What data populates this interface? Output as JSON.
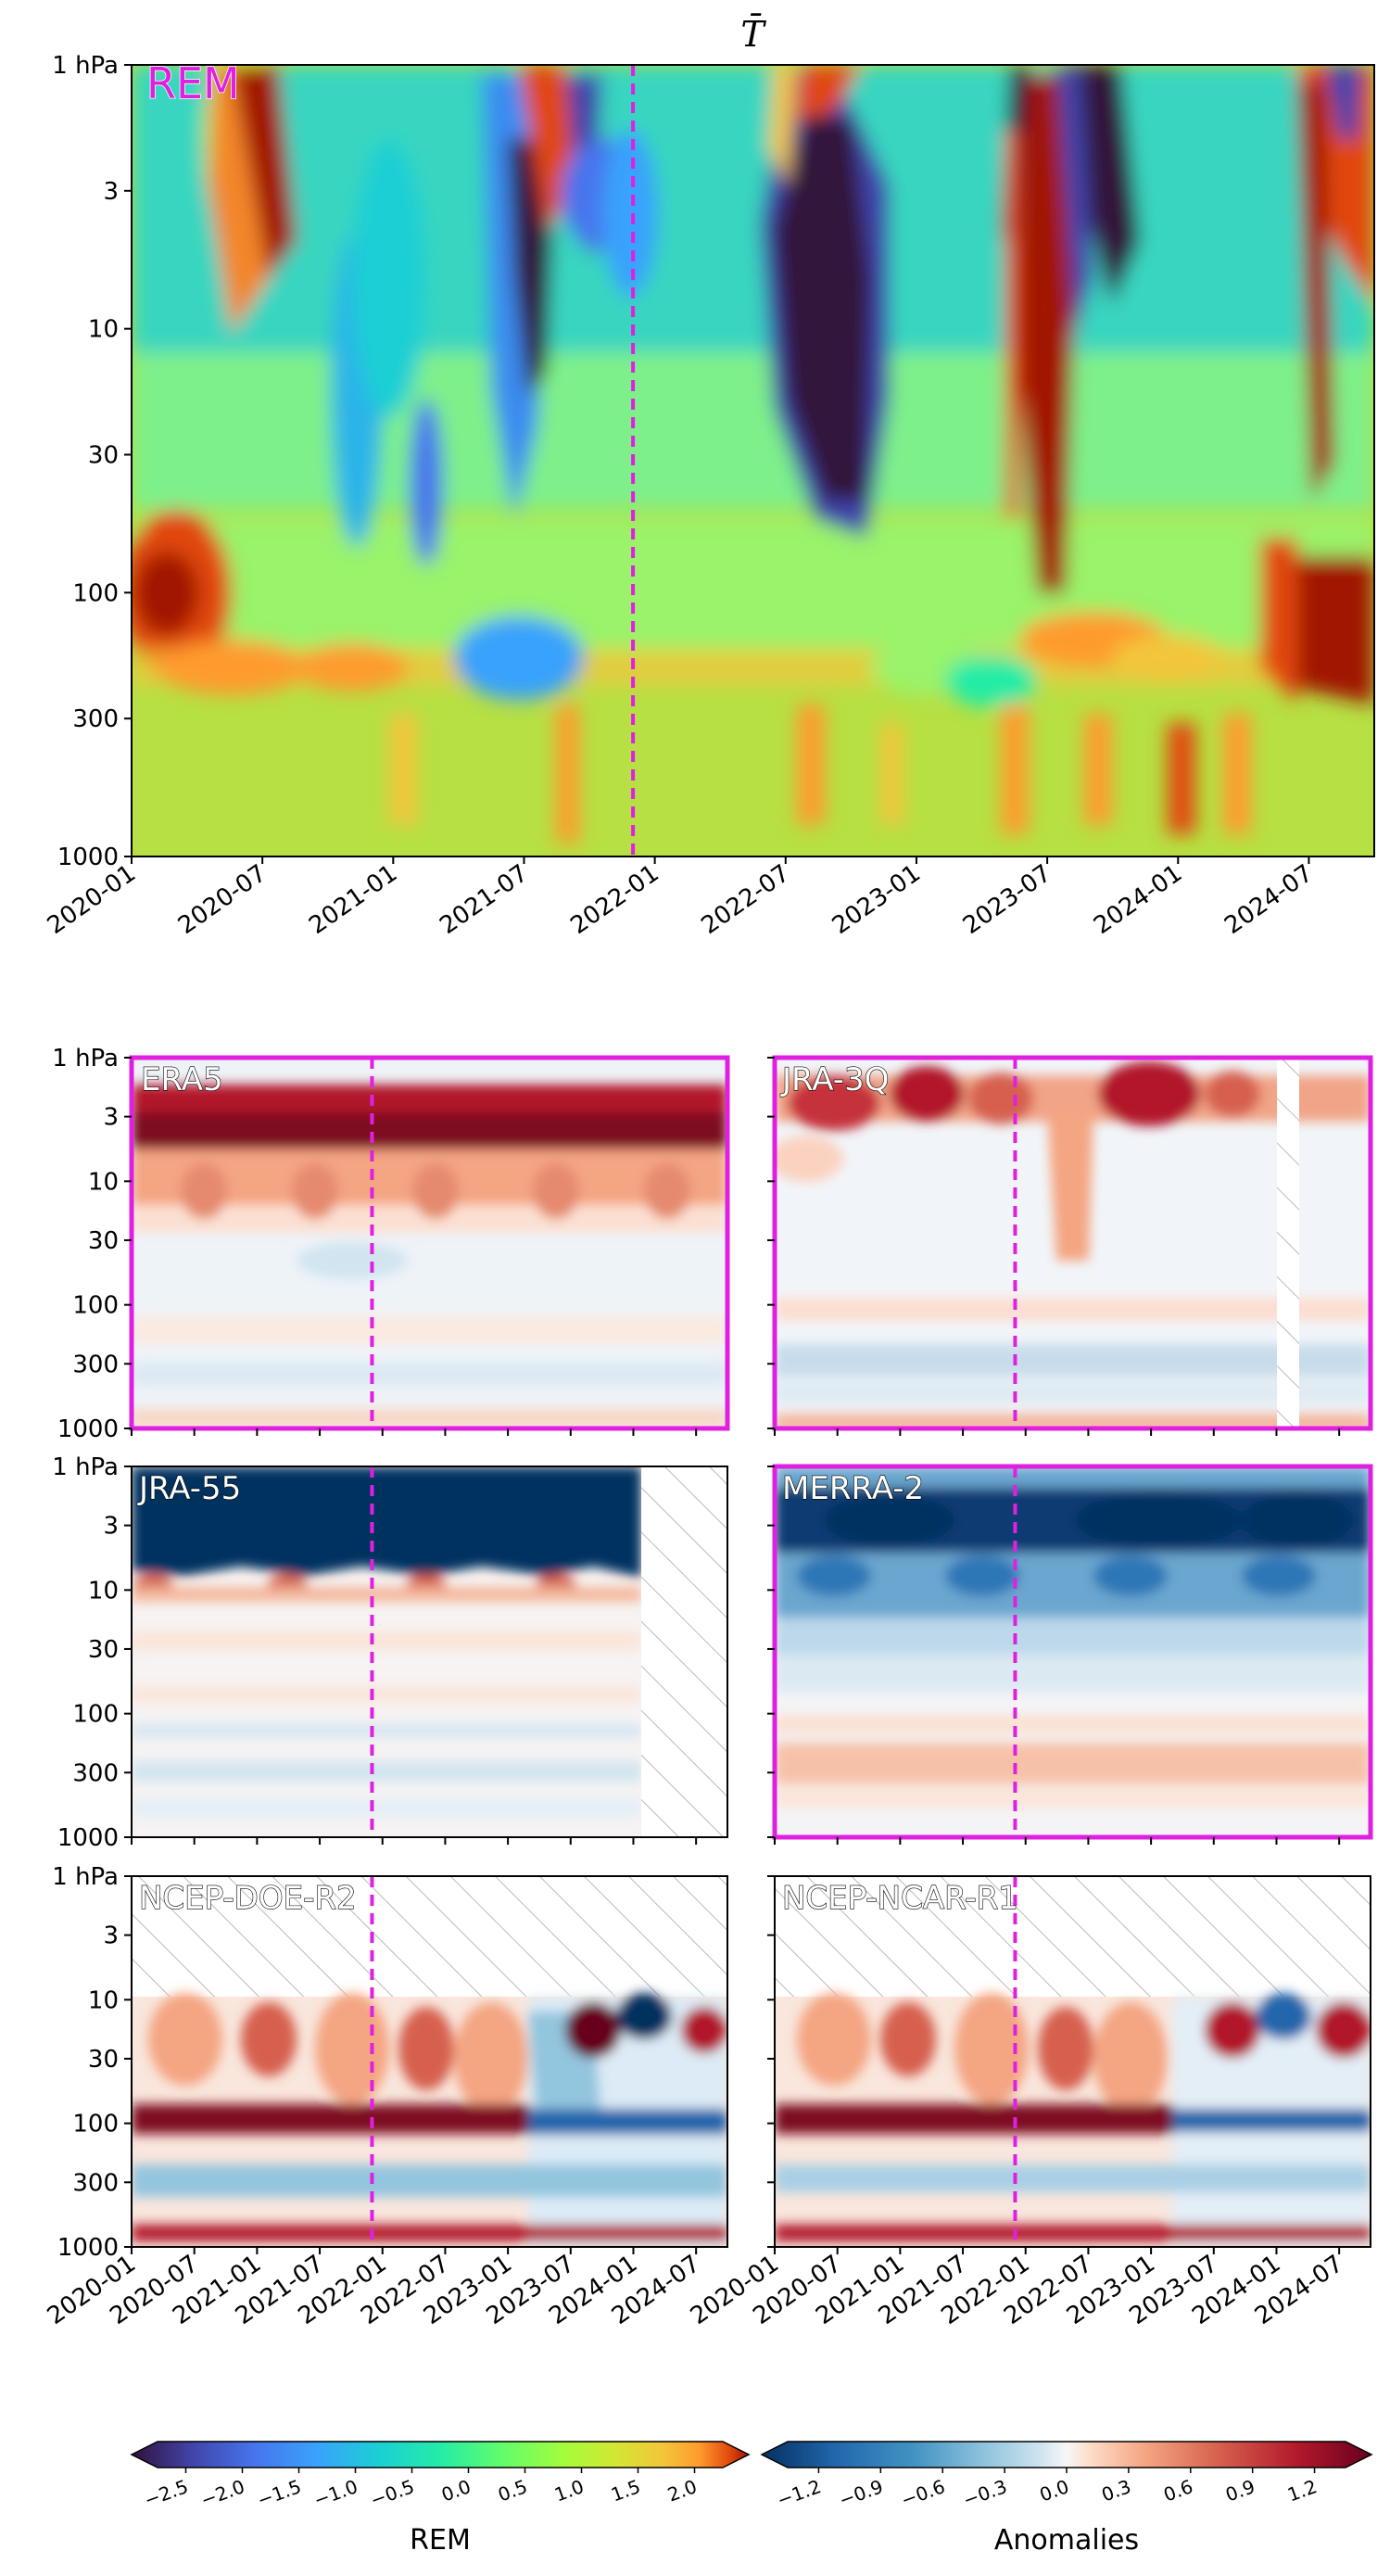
{
  "chart_data": [
    {
      "type": "heatmap",
      "panel": "top",
      "title": "T̄",
      "label": "REM",
      "colormap": "jet",
      "highlight_color": "#e020e0",
      "marker_date": "2021-12",
      "x_ticks": [
        "2020-01",
        "2020-07",
        "2021-01",
        "2021-07",
        "2022-01",
        "2022-07",
        "2023-01",
        "2023-07",
        "2024-01",
        "2024-07"
      ],
      "y_ticks": [
        "1 hPa",
        "3",
        "10",
        "30",
        "100",
        "300",
        "1000"
      ],
      "y_scale": "log",
      "ylim": [
        1000,
        1
      ]
    },
    {
      "type": "heatmap",
      "panel": "ERA5",
      "label": "ERA5",
      "colormap": "RdBu_r",
      "highlighted": true,
      "marker_date": "2021-12",
      "y_ticks": [
        "1 hPa",
        "3",
        "10",
        "30",
        "100",
        "300",
        "1000"
      ],
      "y_scale": "log",
      "data_end": "2024-10",
      "upper_levels_missing": false
    },
    {
      "type": "heatmap",
      "panel": "JRA-3Q",
      "label": "JRA-3Q",
      "colormap": "RdBu_r",
      "highlighted": true,
      "marker_date": "2021-12",
      "data_gap": [
        "2024-03",
        "2024-05"
      ],
      "data_end": "2024-10"
    },
    {
      "type": "heatmap",
      "panel": "JRA-55",
      "label": "JRA-55",
      "colormap": "RdBu_r",
      "highlighted": false,
      "marker_date": "2021-12",
      "y_ticks": [
        "1 hPa",
        "3",
        "10",
        "30",
        "100",
        "300",
        "1000"
      ],
      "data_end": "2024-01"
    },
    {
      "type": "heatmap",
      "panel": "MERRA-2",
      "label": "MERRA-2",
      "colormap": "RdBu_r",
      "highlighted": true,
      "marker_date": "2021-12",
      "data_end": "2024-10"
    },
    {
      "type": "heatmap",
      "panel": "NCEP-DOE-R2",
      "label": "NCEP-DOE-R2",
      "colormap": "RdBu_r",
      "highlighted": false,
      "marker_date": "2021-12",
      "y_ticks": [
        "1 hPa",
        "3",
        "10",
        "30",
        "100",
        "300",
        "1000"
      ],
      "x_ticks": [
        "2020-01",
        "2020-07",
        "2021-01",
        "2021-07",
        "2022-01",
        "2022-07",
        "2023-01",
        "2023-07",
        "2024-01",
        "2024-07"
      ],
      "top_level": "10 hPa"
    },
    {
      "type": "heatmap",
      "panel": "NCEP-NCAR-R1",
      "label": "NCEP-NCAR-R1",
      "colormap": "RdBu_r",
      "highlighted": false,
      "marker_date": "2021-12",
      "x_ticks": [
        "2020-01",
        "2020-07",
        "2021-01",
        "2021-07",
        "2022-01",
        "2022-07",
        "2023-01",
        "2023-07",
        "2024-01",
        "2024-07"
      ],
      "top_level": "10 hPa"
    }
  ],
  "colorbars": [
    {
      "label": "REM",
      "colormap": "jet",
      "ticks": [
        "−2.5",
        "−2.0",
        "−1.5",
        "−1.0",
        "−0.5",
        "0.0",
        "0.5",
        "1.0",
        "1.5",
        "2.0"
      ]
    },
    {
      "label": "Anomalies",
      "colormap": "RdBu_r",
      "ticks": [
        "−1.2",
        "−0.9",
        "−0.6",
        "−0.3",
        "0.0",
        "0.3",
        "0.6",
        "0.9",
        "1.2"
      ]
    }
  ]
}
